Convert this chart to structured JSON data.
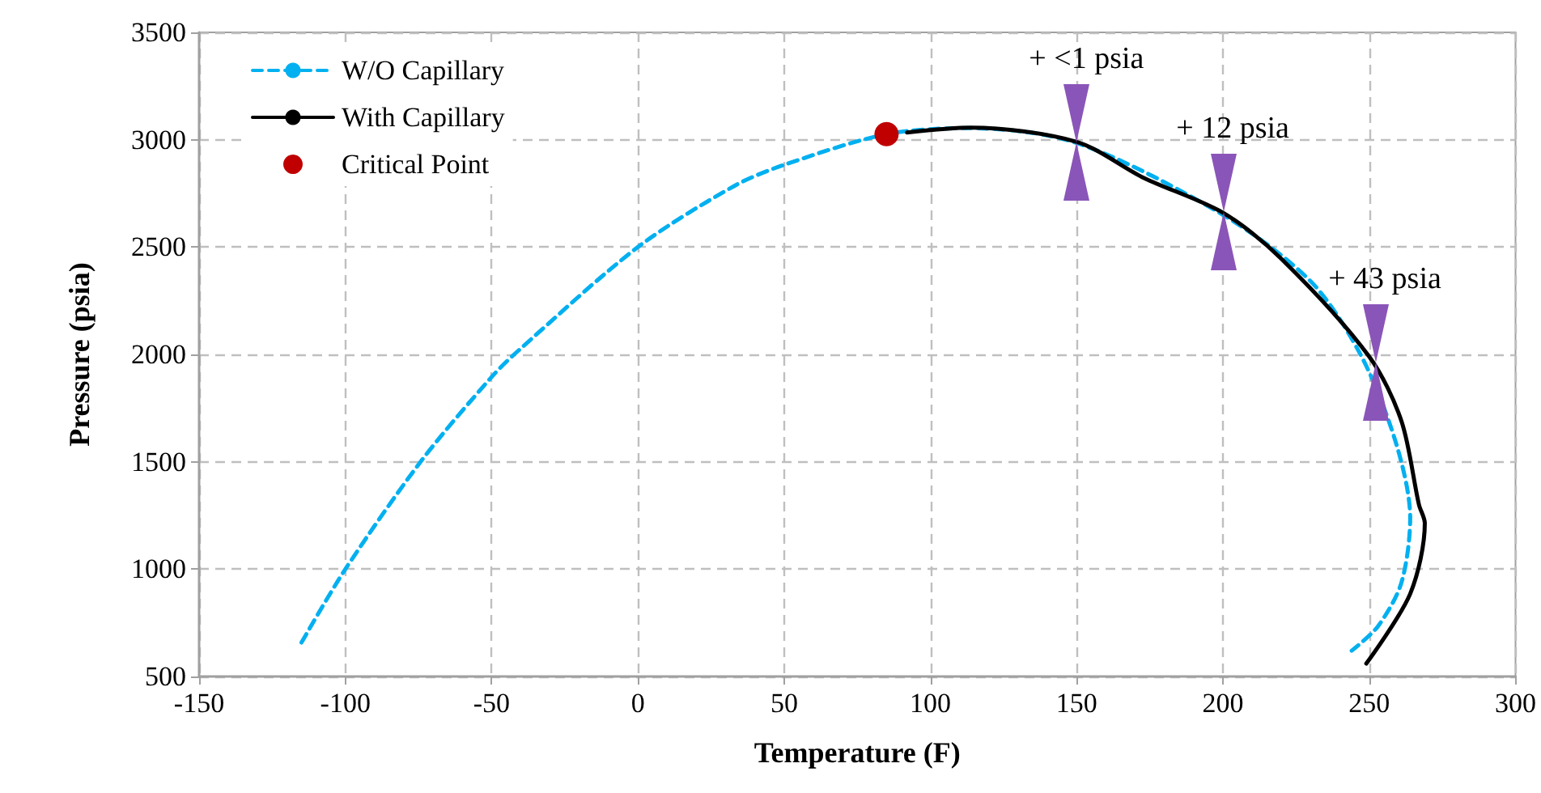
{
  "chart_data": {
    "type": "line",
    "xlabel": "Temperature (F)",
    "ylabel": "Pressure (psia)",
    "series": [
      {
        "name": "W/O Capillary",
        "color": "#00b0f0",
        "line_style": "dashed",
        "marker": "none",
        "x": [
          -115,
          -100,
          -74,
          -50,
          -41,
          0,
          33,
          50,
          85,
          113,
          150,
          200,
          230,
          247,
          259,
          264,
          261,
          253,
          244
        ],
        "values": [
          658,
          1000,
          1505,
          1895,
          2016,
          2500,
          2785,
          2883,
          3026,
          3054,
          2985,
          2650,
          2340,
          2000,
          1594,
          1239,
          937,
          734,
          620
        ]
      },
      {
        "name": "With Capillary",
        "color": "#000000",
        "line_style": "solid",
        "marker": "none",
        "x": [
          92,
          114,
          150,
          173,
          200,
          220,
          250,
          261,
          267,
          269,
          264,
          249
        ],
        "values": [
          3034,
          3056,
          2990,
          2822,
          2660,
          2445,
          1990,
          1690,
          1300,
          1214,
          885,
          560
        ]
      },
      {
        "name": "Critical Point",
        "type": "scatter",
        "color": "#c00000",
        "marker": "circle",
        "x": [
          85
        ],
        "values": [
          3026
        ]
      }
    ],
    "xlim": [
      -150,
      300
    ],
    "xticks": [
      -150,
      -100,
      -50,
      0,
      50,
      100,
      150,
      200,
      250,
      300
    ],
    "ylim": [
      500,
      3500
    ],
    "yticks": [
      500,
      1000,
      1500,
      2000,
      2500,
      3000,
      3500
    ],
    "grid": true,
    "legend": "top left",
    "annotations": [
      {
        "text": "+ <1 psia",
        "x": 150,
        "y": 2990
      },
      {
        "text": "+ 12 psia",
        "x": 200,
        "y": 2660
      },
      {
        "text": "+ 43 psia",
        "x": 252,
        "y": 1960
      }
    ]
  }
}
